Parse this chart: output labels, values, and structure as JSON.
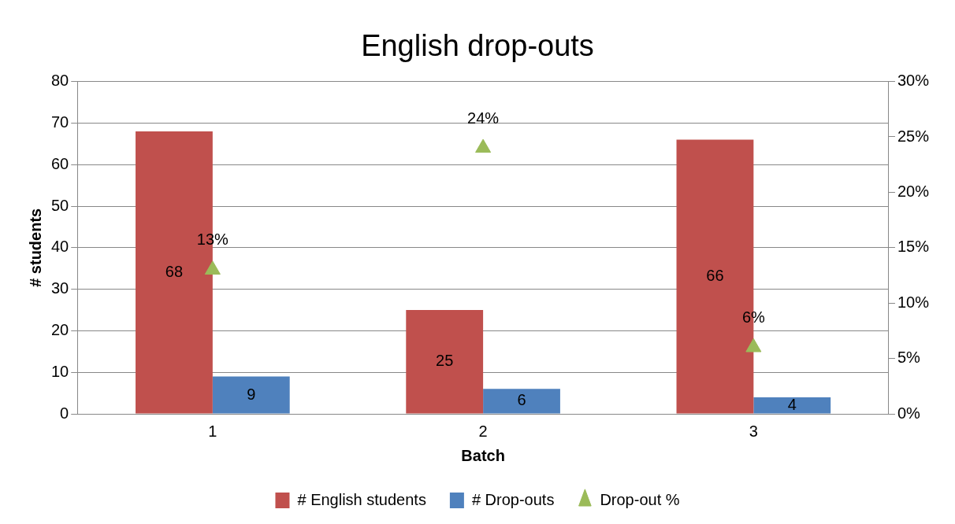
{
  "chart_data": {
    "type": "bar",
    "title": "English drop-outs",
    "xlabel": "Batch",
    "ylabel": "# students",
    "categories": [
      "1",
      "2",
      "3"
    ],
    "series": [
      {
        "name": "# English students",
        "color": "#c0504d",
        "values": [
          68,
          25,
          66
        ],
        "value_labels": [
          "68",
          "25",
          "66"
        ]
      },
      {
        "name": "# Drop-outs",
        "color": "#4f81bd",
        "values": [
          9,
          6,
          4
        ],
        "value_labels": [
          "9",
          "6",
          "4"
        ]
      },
      {
        "name": "Drop-out %",
        "type": "scatter",
        "axis": "y2",
        "marker": "triangle",
        "color": "#9bbb59",
        "values": [
          13,
          24,
          6
        ],
        "value_labels": [
          "13%",
          "24%",
          "6%"
        ]
      }
    ],
    "ylim": [
      0,
      80
    ],
    "yticks": [
      0,
      10,
      20,
      30,
      40,
      50,
      60,
      70,
      80
    ],
    "y2lim": [
      0,
      30
    ],
    "y2ticks": [
      {
        "value": 0,
        "label": "0%"
      },
      {
        "value": 5,
        "label": "5%"
      },
      {
        "value": 10,
        "label": "10%"
      },
      {
        "value": 15,
        "label": "15%"
      },
      {
        "value": 20,
        "label": "20%"
      },
      {
        "value": 25,
        "label": "25%"
      },
      {
        "value": 30,
        "label": "30%"
      }
    ],
    "grid": "y",
    "legend": "bottom"
  }
}
